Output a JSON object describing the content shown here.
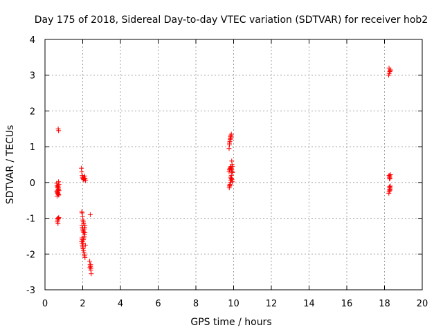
{
  "chart_data": {
    "type": "scatter",
    "title": "Day 175 of 2018, Sidereal Day-to-day VTEC variation (SDTVAR) for receiver hob2",
    "xlabel": "GPS time / hours",
    "ylabel": "SDTVAR / TECUs",
    "xlim": [
      0,
      20
    ],
    "ylim": [
      -3,
      4
    ],
    "xticks": [
      0,
      2,
      4,
      6,
      8,
      10,
      12,
      14,
      16,
      18,
      20
    ],
    "yticks": [
      -3,
      -2,
      -1,
      0,
      1,
      2,
      3,
      4
    ],
    "grid": true,
    "marker": "plus",
    "color": "#ff0000",
    "series": [
      {
        "name": "SDTVAR",
        "x": [
          0.62,
          0.64,
          0.66,
          0.68,
          0.7,
          0.72,
          0.74,
          0.63,
          0.65,
          0.67,
          0.69,
          0.71,
          0.73,
          0.66,
          0.7,
          0.72,
          0.74,
          0.64,
          0.68,
          0.71,
          0.66,
          0.68,
          0.7,
          0.66,
          0.69,
          0.71,
          0.73,
          0.7,
          0.72,
          1.93,
          1.95,
          1.97,
          1.99,
          2.01,
          2.03,
          2.05,
          2.07,
          2.09,
          2.11,
          2.13,
          2.15,
          1.95,
          1.97,
          1.99,
          2.01,
          2.03,
          2.05,
          1.96,
          1.98,
          2.0,
          2.02,
          2.04,
          2.06,
          2.08,
          2.1,
          2.12,
          1.94,
          1.96,
          1.98,
          2.0,
          2.02,
          2.04,
          2.06,
          2.08,
          2.1,
          2.12,
          2.14,
          1.96,
          1.98,
          2.0,
          2.02,
          2.04,
          2.06,
          2.08,
          2.1,
          2.12,
          2.37,
          2.39,
          2.41,
          2.43,
          2.45,
          2.38,
          2.42,
          2.44,
          2.4,
          9.76,
          9.78,
          9.8,
          9.82,
          9.84,
          9.86,
          9.88,
          9.78,
          9.82,
          9.86,
          9.9,
          9.92,
          9.94,
          9.76,
          9.78,
          9.8,
          9.82,
          9.84,
          9.86,
          9.88,
          9.9,
          9.92,
          9.94,
          9.77,
          9.79,
          9.81,
          9.83,
          9.85,
          9.87,
          9.89,
          9.91,
          9.93,
          9.8,
          9.84,
          9.88,
          18.22,
          18.25,
          18.28,
          18.31,
          18.24,
          18.3,
          18.24,
          18.26,
          18.28,
          18.3,
          18.26,
          18.31,
          18.23,
          18.25,
          18.27,
          18.29,
          18.31,
          18.26,
          18.3,
          18.28
        ],
        "y": [
          -0.02,
          -0.08,
          -0.12,
          -0.15,
          -0.18,
          -0.2,
          -0.23,
          -0.25,
          -0.27,
          -0.3,
          -0.32,
          -0.33,
          -0.35,
          -0.22,
          -0.1,
          0.02,
          -0.05,
          -0.38,
          -0.28,
          -0.15,
          -1.0,
          -1.05,
          -1.02,
          -1.1,
          -1.15,
          -1.0,
          -0.98,
          1.5,
          1.45,
          0.4,
          0.3,
          0.2,
          0.15,
          0.12,
          0.1,
          0.08,
          0.1,
          0.12,
          0.18,
          0.1,
          0.05,
          -0.82,
          -0.85,
          -0.95,
          -1.05,
          -1.1,
          -1.15,
          -1.2,
          -1.25,
          -1.3,
          -1.35,
          -1.38,
          -1.4,
          -1.3,
          -1.25,
          -1.2,
          -1.65,
          -1.7,
          -1.75,
          -1.8,
          -1.85,
          -1.9,
          -1.95,
          -2.0,
          -2.05,
          -2.1,
          -1.75,
          -1.55,
          -1.6,
          -1.65,
          -1.7,
          -1.6,
          -1.55,
          -1.5,
          -1.45,
          -1.4,
          -2.2,
          -2.3,
          -2.35,
          -2.45,
          -2.55,
          -2.38,
          -2.3,
          -2.4,
          -0.9,
          0.95,
          1.05,
          1.15,
          1.22,
          1.28,
          1.32,
          1.35,
          1.1,
          1.2,
          1.25,
          0.6,
          0.5,
          0.45,
          0.3,
          0.35,
          0.38,
          0.4,
          0.42,
          0.45,
          0.38,
          0.35,
          0.3,
          0.28,
          -0.15,
          -0.1,
          -0.05,
          0.0,
          0.05,
          0.1,
          0.12,
          0.08,
          0.02,
          -0.08,
          0.15,
          0.2,
          3.0,
          3.05,
          3.1,
          3.15,
          3.2,
          3.12,
          0.2,
          0.15,
          0.18,
          0.12,
          0.1,
          0.22,
          -0.3,
          -0.25,
          -0.2,
          -0.15,
          -0.1,
          -0.12,
          -0.18,
          -0.22
        ]
      }
    ]
  }
}
